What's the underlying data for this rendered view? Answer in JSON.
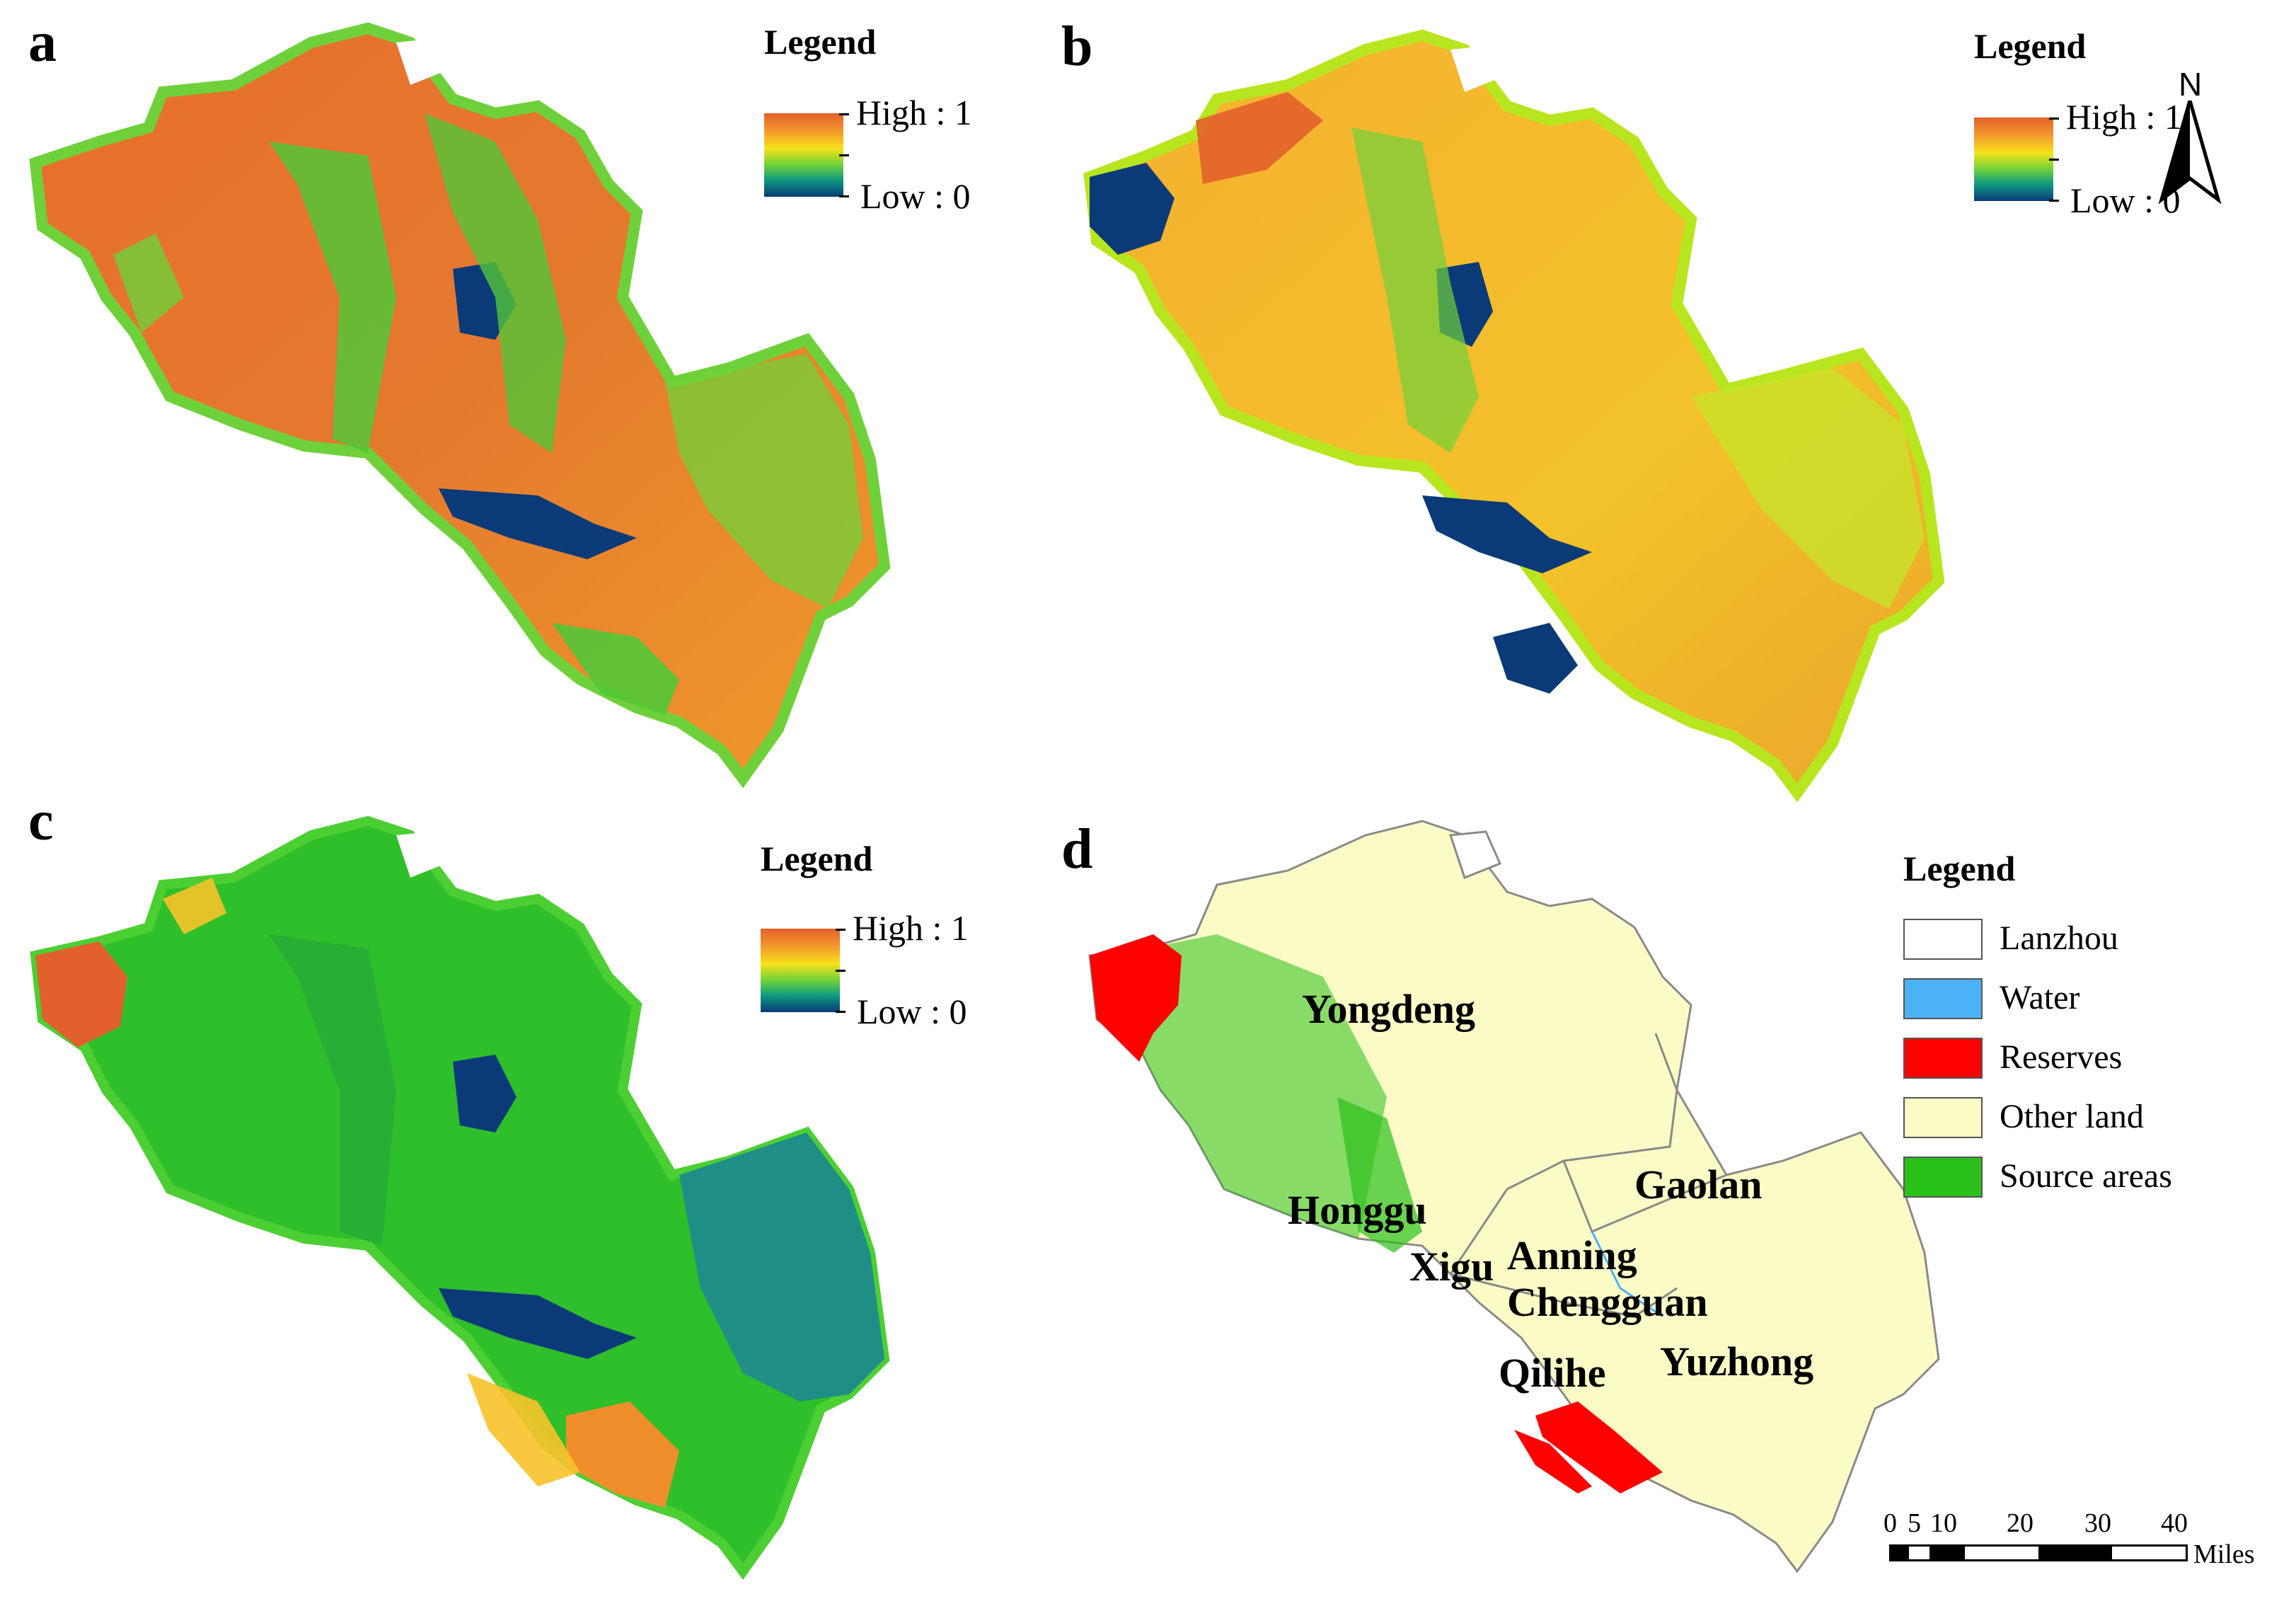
{
  "panels": {
    "a": {
      "letter": "a"
    },
    "b": {
      "letter": "b"
    },
    "c": {
      "letter": "c"
    },
    "d": {
      "letter": "d"
    }
  },
  "ramp_legend": {
    "title": "Legend",
    "high": "High : 1",
    "low": "Low : 0",
    "colors": [
      "#e2602b",
      "#f39a2c",
      "#f7e21a",
      "#6fd13a",
      "#0f9a80",
      "#0a3a78"
    ]
  },
  "category_legend": {
    "title": "Legend",
    "items": [
      {
        "label": "Lanzhou",
        "color": "#ffffff"
      },
      {
        "label": "Water",
        "color": "#4db1f5"
      },
      {
        "label": "Reserves",
        "color": "#ff0000"
      },
      {
        "label": "Other land",
        "color": "#fbfbc6"
      },
      {
        "label": "Source areas",
        "color": "#2bc11b"
      }
    ]
  },
  "districts": [
    "Yongdeng",
    "Honggu",
    "Gaolan",
    "Xigu",
    "Anning",
    "Chengguan",
    "Qilihe",
    "Yuzhong"
  ],
  "north_arrow": {
    "label": "N"
  },
  "scale_bar": {
    "ticks": [
      "0",
      "5",
      "10",
      "20",
      "30",
      "40"
    ],
    "unit": "Miles"
  }
}
